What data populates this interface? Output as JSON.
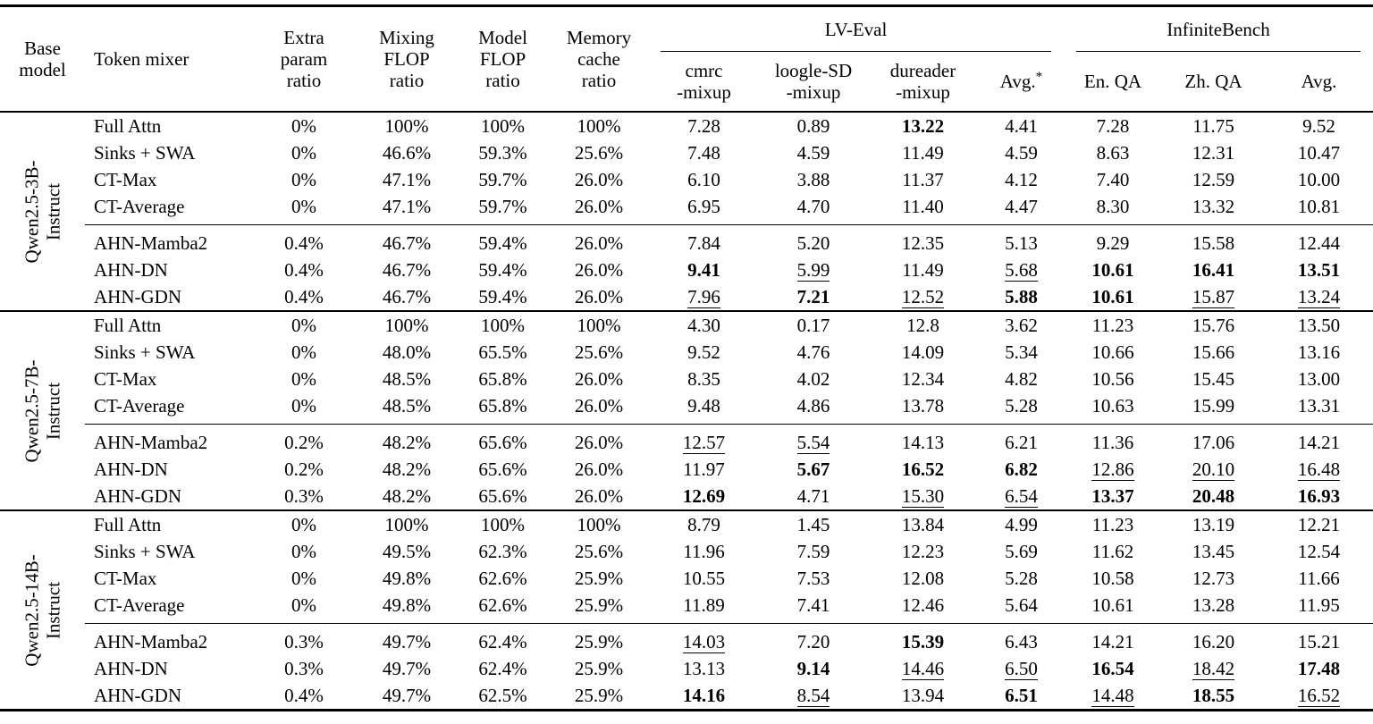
{
  "colors": {
    "text": "#000000",
    "background": "#ffffff",
    "rule": "#000000"
  },
  "header": {
    "base_model": "Base\nmodel",
    "token_mixer": "Token mixer",
    "extra_param": "Extra\nparam\nratio",
    "mixing_flop": "Mixing\nFLOP\nratio",
    "model_flop": "Model\nFLOP\nratio",
    "memory_cache": "Memory\ncache\nratio",
    "avg_footnote_mark": "*",
    "groups": [
      {
        "label": "LV-Eval",
        "columns": [
          "cmrc\n-mixup",
          "loogle-SD\n-mixup",
          "dureader\n-mixup",
          "Avg."
        ]
      },
      {
        "label": "InfiniteBench",
        "columns": [
          "En. QA",
          "Zh. QA",
          "Avg."
        ]
      }
    ]
  },
  "blocks": [
    {
      "base_model": "Qwen2.5-3B-\nInstruct",
      "groups": [
        {
          "rows": [
            {
              "mixer": "Full Attn",
              "cells": [
                "0%",
                "100%",
                "100%",
                "100%",
                "7.28",
                "0.89",
                [
                  "13.22",
                  "b"
                ],
                "4.41",
                "7.28",
                "11.75",
                "9.52"
              ]
            },
            {
              "mixer": "Sinks + SWA",
              "cells": [
                "0%",
                "46.6%",
                "59.3%",
                "25.6%",
                "7.48",
                "4.59",
                "11.49",
                "4.59",
                "8.63",
                "12.31",
                "10.47"
              ]
            },
            {
              "mixer": "CT-Max",
              "cells": [
                "0%",
                "47.1%",
                "59.7%",
                "26.0%",
                "6.10",
                "3.88",
                "11.37",
                "4.12",
                "7.40",
                "12.59",
                "10.00"
              ]
            },
            {
              "mixer": "CT-Average",
              "cells": [
                "0%",
                "47.1%",
                "59.7%",
                "26.0%",
                "6.95",
                "4.70",
                "11.40",
                "4.47",
                "8.30",
                "13.32",
                "10.81"
              ]
            }
          ]
        },
        {
          "rows": [
            {
              "mixer": "AHN-Mamba2",
              "cells": [
                "0.4%",
                "46.7%",
                "59.4%",
                "26.0%",
                "7.84",
                "5.20",
                "12.35",
                "5.13",
                "9.29",
                "15.58",
                "12.44"
              ]
            },
            {
              "mixer": "AHN-DN",
              "cells": [
                "0.4%",
                "46.7%",
                "59.4%",
                "26.0%",
                [
                  "9.41",
                  "b"
                ],
                [
                  "5.99",
                  "u"
                ],
                "11.49",
                [
                  "5.68",
                  "u"
                ],
                [
                  "10.61",
                  "b"
                ],
                [
                  "16.41",
                  "b"
                ],
                [
                  "13.51",
                  "b"
                ]
              ]
            },
            {
              "mixer": "AHN-GDN",
              "cells": [
                "0.4%",
                "46.7%",
                "59.4%",
                "26.0%",
                [
                  "7.96",
                  "u"
                ],
                [
                  "7.21",
                  "b"
                ],
                [
                  "12.52",
                  "u"
                ],
                [
                  "5.88",
                  "b"
                ],
                [
                  "10.61",
                  "b"
                ],
                [
                  "15.87",
                  "u"
                ],
                [
                  "13.24",
                  "u"
                ]
              ]
            }
          ]
        }
      ]
    },
    {
      "base_model": "Qwen2.5-7B-\nInstruct",
      "groups": [
        {
          "rows": [
            {
              "mixer": "Full Attn",
              "cells": [
                "0%",
                "100%",
                "100%",
                "100%",
                "4.30",
                "0.17",
                "12.8",
                "3.62",
                "11.23",
                "15.76",
                "13.50"
              ]
            },
            {
              "mixer": "Sinks + SWA",
              "cells": [
                "0%",
                "48.0%",
                "65.5%",
                "25.6%",
                "9.52",
                "4.76",
                "14.09",
                "5.34",
                "10.66",
                "15.66",
                "13.16"
              ]
            },
            {
              "mixer": "CT-Max",
              "cells": [
                "0%",
                "48.5%",
                "65.8%",
                "26.0%",
                "8.35",
                "4.02",
                "12.34",
                "4.82",
                "10.56",
                "15.45",
                "13.00"
              ]
            },
            {
              "mixer": "CT-Average",
              "cells": [
                "0%",
                "48.5%",
                "65.8%",
                "26.0%",
                "9.48",
                "4.86",
                "13.78",
                "5.28",
                "10.63",
                "15.99",
                "13.31"
              ]
            }
          ]
        },
        {
          "rows": [
            {
              "mixer": "AHN-Mamba2",
              "cells": [
                "0.2%",
                "48.2%",
                "65.6%",
                "26.0%",
                [
                  "12.57",
                  "u"
                ],
                [
                  "5.54",
                  "u"
                ],
                "14.13",
                "6.21",
                "11.36",
                "17.06",
                "14.21"
              ]
            },
            {
              "mixer": "AHN-DN",
              "cells": [
                "0.2%",
                "48.2%",
                "65.6%",
                "26.0%",
                "11.97",
                [
                  "5.67",
                  "b"
                ],
                [
                  "16.52",
                  "b"
                ],
                [
                  "6.82",
                  "b"
                ],
                [
                  "12.86",
                  "u"
                ],
                [
                  "20.10",
                  "u"
                ],
                [
                  "16.48",
                  "u"
                ]
              ]
            },
            {
              "mixer": "AHN-GDN",
              "cells": [
                "0.3%",
                "48.2%",
                "65.6%",
                "26.0%",
                [
                  "12.69",
                  "b"
                ],
                "4.71",
                [
                  "15.30",
                  "u"
                ],
                [
                  "6.54",
                  "u"
                ],
                [
                  "13.37",
                  "b"
                ],
                [
                  "20.48",
                  "b"
                ],
                [
                  "16.93",
                  "b"
                ]
              ]
            }
          ]
        }
      ]
    },
    {
      "base_model": "Qwen2.5-14B-\nInstruct",
      "groups": [
        {
          "rows": [
            {
              "mixer": "Full Attn",
              "cells": [
                "0%",
                "100%",
                "100%",
                "100%",
                "8.79",
                "1.45",
                "13.84",
                "4.99",
                "11.23",
                "13.19",
                "12.21"
              ]
            },
            {
              "mixer": "Sinks + SWA",
              "cells": [
                "0%",
                "49.5%",
                "62.3%",
                "25.6%",
                "11.96",
                "7.59",
                "12.23",
                "5.69",
                "11.62",
                "13.45",
                "12.54"
              ]
            },
            {
              "mixer": "CT-Max",
              "cells": [
                "0%",
                "49.8%",
                "62.6%",
                "25.9%",
                "10.55",
                "7.53",
                "12.08",
                "5.28",
                "10.58",
                "12.73",
                "11.66"
              ]
            },
            {
              "mixer": "CT-Average",
              "cells": [
                "0%",
                "49.8%",
                "62.6%",
                "25.9%",
                "11.89",
                "7.41",
                "12.46",
                "5.64",
                "10.61",
                "13.28",
                "11.95"
              ]
            }
          ]
        },
        {
          "rows": [
            {
              "mixer": "AHN-Mamba2",
              "cells": [
                "0.3%",
                "49.7%",
                "62.4%",
                "25.9%",
                [
                  "14.03",
                  "u"
                ],
                "7.20",
                [
                  "15.39",
                  "b"
                ],
                "6.43",
                "14.21",
                "16.20",
                "15.21"
              ]
            },
            {
              "mixer": "AHN-DN",
              "cells": [
                "0.3%",
                "49.7%",
                "62.4%",
                "25.9%",
                "13.13",
                [
                  "9.14",
                  "b"
                ],
                [
                  "14.46",
                  "u"
                ],
                [
                  "6.50",
                  "u"
                ],
                [
                  "16.54",
                  "b"
                ],
                [
                  "18.42",
                  "u"
                ],
                [
                  "17.48",
                  "b"
                ]
              ]
            },
            {
              "mixer": "AHN-GDN",
              "cells": [
                "0.4%",
                "49.7%",
                "62.5%",
                "25.9%",
                [
                  "14.16",
                  "b"
                ],
                [
                  "8.54",
                  "u"
                ],
                "13.94",
                [
                  "6.51",
                  "b"
                ],
                [
                  "14.48",
                  "u"
                ],
                [
                  "18.55",
                  "b"
                ],
                [
                  "16.52",
                  "u"
                ]
              ]
            }
          ]
        }
      ]
    }
  ]
}
